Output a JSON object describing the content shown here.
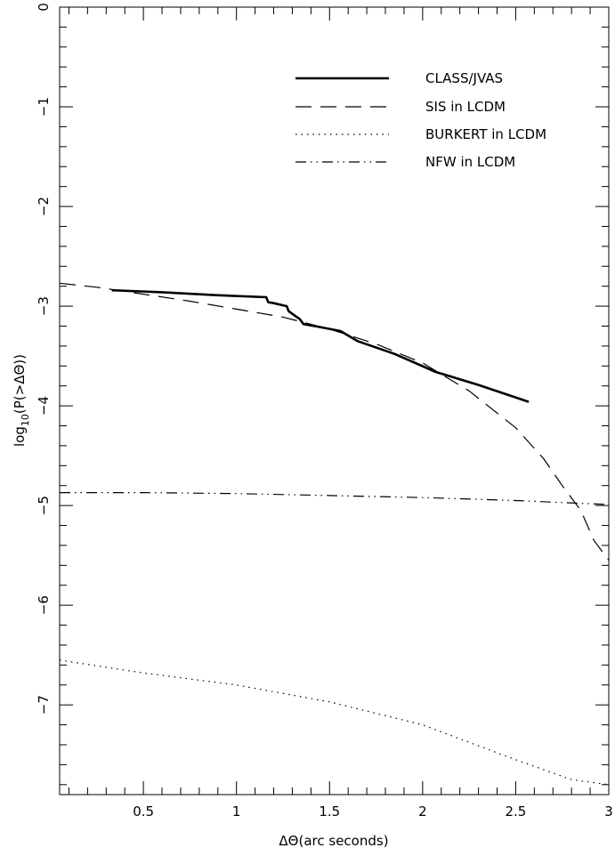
{
  "chart_data": {
    "type": "line",
    "title": "",
    "xlabel": "ΔΘ(arc seconds)",
    "ylabel_prefix": "log",
    "ylabel_subscript": "10",
    "ylabel_suffix": "(P(>ΔΘ))",
    "xlim": [
      0.05,
      3.0
    ],
    "ylim": [
      -7.9,
      0.0
    ],
    "x_ticks": [
      {
        "value": 0.5,
        "label": "0.5"
      },
      {
        "value": 1.0,
        "label": "1"
      },
      {
        "value": 1.5,
        "label": "1.5"
      },
      {
        "value": 2.0,
        "label": "2"
      },
      {
        "value": 2.5,
        "label": "2.5"
      },
      {
        "value": 3.0,
        "label": "3"
      }
    ],
    "y_ticks": [
      {
        "value": 0,
        "label": "0"
      },
      {
        "value": -1,
        "label": "−1"
      },
      {
        "value": -2,
        "label": "−2"
      },
      {
        "value": -3,
        "label": "−3"
      },
      {
        "value": -4,
        "label": "−4"
      },
      {
        "value": -5,
        "label": "−5"
      },
      {
        "value": -6,
        "label": "−6"
      },
      {
        "value": -7,
        "label": "−7"
      }
    ],
    "legend_position": "top-right",
    "grid": false,
    "series": [
      {
        "name": "CLASS/JVAS",
        "style": "solid-thick",
        "x": [
          0.33,
          0.6,
          0.9,
          1.16,
          1.17,
          1.2,
          1.27,
          1.28,
          1.31,
          1.34,
          1.36,
          1.45,
          1.56,
          1.65,
          1.85,
          2.07,
          2.3,
          2.57
        ],
        "y": [
          -2.84,
          -2.86,
          -2.89,
          -2.91,
          -2.96,
          -2.97,
          -3.0,
          -3.05,
          -3.09,
          -3.13,
          -3.18,
          -3.21,
          -3.25,
          -3.35,
          -3.48,
          -3.66,
          -3.79,
          -3.96
        ]
      },
      {
        "name": "SIS in LCDM",
        "style": "dashed",
        "x": [
          0.05,
          0.25,
          0.5,
          0.75,
          1.0,
          1.25,
          1.5,
          1.75,
          2.0,
          2.25,
          2.5,
          2.65,
          2.75,
          2.85,
          2.92,
          3.0
        ],
        "y": [
          -2.77,
          -2.81,
          -2.88,
          -2.95,
          -3.03,
          -3.11,
          -3.23,
          -3.38,
          -3.57,
          -3.85,
          -4.22,
          -4.53,
          -4.8,
          -5.05,
          -5.35,
          -5.55
        ]
      },
      {
        "name": "BURKERT in LCDM",
        "style": "dotted",
        "x": [
          0.05,
          0.5,
          1.0,
          1.5,
          2.0,
          2.5,
          2.8,
          3.0
        ],
        "y": [
          -6.55,
          -6.68,
          -6.8,
          -6.97,
          -7.2,
          -7.55,
          -7.75,
          -7.8
        ]
      },
      {
        "name": "NFW in LCDM",
        "style": "dash-dot-dot",
        "x": [
          0.05,
          0.5,
          1.0,
          1.5,
          2.0,
          2.5,
          3.0
        ],
        "y": [
          -4.87,
          -4.87,
          -4.88,
          -4.9,
          -4.92,
          -4.95,
          -4.99
        ]
      }
    ]
  }
}
